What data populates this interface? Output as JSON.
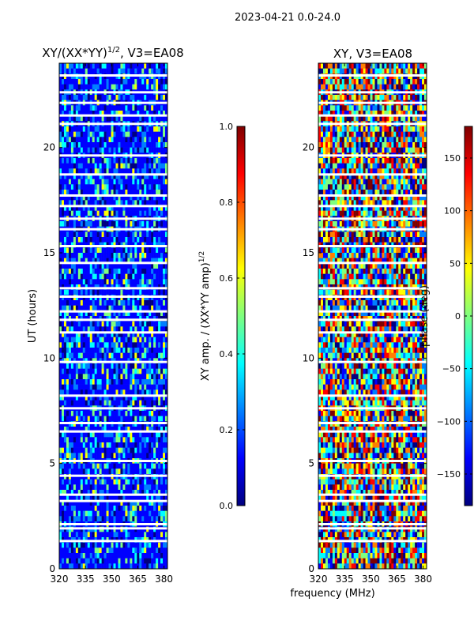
{
  "suptitle": "2023-04-21 0.0-24.0",
  "colormap": [
    "#00007f",
    "#0000ff",
    "#007fff",
    "#00ffff",
    "#7fff7f",
    "#ffff00",
    "#ff7f00",
    "#ff0000",
    "#7f0000"
  ],
  "chart_data": [
    {
      "type": "heatmap",
      "title_main": "XY/(XX*YY)",
      "title_sup": "1/2",
      "title_tail": ", V3=EA08",
      "xlabel": "",
      "ylabel": "UT (hours)",
      "xlim": [
        320,
        382
      ],
      "ylim": [
        0,
        24
      ],
      "xticks": [
        320,
        335,
        350,
        365,
        380
      ],
      "yticks": [
        0,
        5,
        10,
        15,
        20
      ],
      "colorbar": {
        "label_main": "XY amp. / (XX*YY amp)",
        "label_sup": "1/2",
        "range": [
          0.0,
          1.0
        ],
        "ticks": [
          "0.0",
          "0.2",
          "0.4",
          "0.6",
          "0.8",
          "1.0"
        ]
      },
      "gaps_hours": [
        1.3,
        1.9,
        2.1,
        3.2,
        3.5,
        4.4,
        5.1,
        6.5,
        6.9,
        7.6,
        8.2,
        9.8,
        11.2,
        11.8,
        12.2,
        12.9,
        13.3,
        14.5,
        15.3,
        16.1,
        16.6,
        17.2,
        17.7,
        18.7,
        19.6,
        21.1,
        21.5,
        22.1,
        22.6,
        23.4
      ]
    },
    {
      "type": "heatmap",
      "title_main": "XY, V3=EA08",
      "xlabel": "frequency (MHz)",
      "ylabel": "",
      "xlim": [
        320,
        382
      ],
      "ylim": [
        0,
        24
      ],
      "xticks": [
        320,
        335,
        350,
        365,
        380
      ],
      "yticks": [
        0,
        5,
        10,
        15,
        20
      ],
      "colorbar": {
        "label_main": "phase (deg)",
        "range": [
          -180,
          180
        ],
        "ticks": [
          "−150",
          "−100",
          "−50",
          "0",
          "50",
          "100",
          "150"
        ]
      },
      "gaps_hours": [
        1.3,
        1.9,
        2.1,
        3.2,
        3.5,
        4.4,
        5.1,
        6.5,
        6.9,
        7.6,
        8.2,
        9.8,
        11.2,
        11.8,
        12.2,
        12.9,
        13.3,
        14.5,
        15.3,
        16.1,
        16.6,
        17.2,
        17.7,
        18.7,
        19.6,
        21.1,
        21.5,
        22.1,
        22.6,
        23.4
      ]
    }
  ]
}
